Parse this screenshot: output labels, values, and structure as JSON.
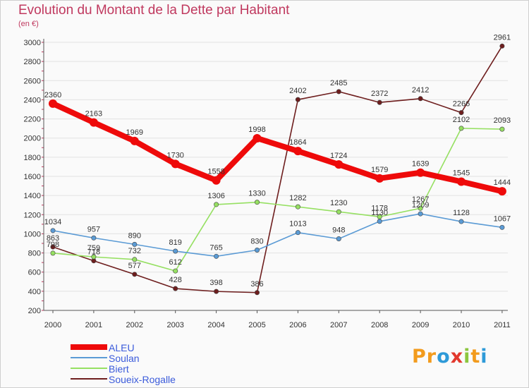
{
  "header": {
    "title": "Evolution du Montant de la Dette par Habitant",
    "subtitle": "(en €)"
  },
  "logo": {
    "text": "Proxiti"
  },
  "colors": {
    "title": "#c0395f",
    "ALEU": "#ee0a0a",
    "Soulan": "#5b9bd5",
    "Biert": "#96e062",
    "Soueix-Rogalle": "#6e1e1e",
    "legend_text": "#3b5bdb"
  },
  "chart_data": {
    "type": "line",
    "title": "Evolution du Montant de la Dette par Habitant",
    "subtitle": "(en €)",
    "xlabel": "",
    "ylabel": "",
    "ylim": [
      200,
      3000
    ],
    "yticks": [
      200,
      400,
      600,
      800,
      1000,
      1200,
      1400,
      1600,
      1800,
      2000,
      2200,
      2400,
      2600,
      2800,
      3000
    ],
    "categories": [
      "2000",
      "2001",
      "2002",
      "2003",
      "2004",
      "2005",
      "2006",
      "2007",
      "2008",
      "2009",
      "2010",
      "2011"
    ],
    "grid": "horizontal",
    "legend_position": "bottom-left",
    "series": [
      {
        "name": "ALEU",
        "color": "#ee0a0a",
        "values": [
          2360,
          2163,
          1969,
          1730,
          1558,
          1998,
          1864,
          1724,
          1579,
          1639,
          1545,
          1444
        ]
      },
      {
        "name": "Soulan",
        "color": "#5b9bd5",
        "values": [
          1034,
          957,
          890,
          819,
          765,
          830,
          1013,
          948,
          1130,
          1209,
          1128,
          1067
        ]
      },
      {
        "name": "Biert",
        "color": "#96e062",
        "values": [
          798,
          759,
          732,
          612,
          1306,
          1330,
          1282,
          1230,
          1178,
          1267,
          2102,
          2093
        ]
      },
      {
        "name": "Soueix-Rogalle",
        "color": "#6e1e1e",
        "values": [
          863,
          718,
          577,
          428,
          398,
          386,
          2402,
          2485,
          2372,
          2412,
          2266,
          2961
        ]
      }
    ]
  }
}
